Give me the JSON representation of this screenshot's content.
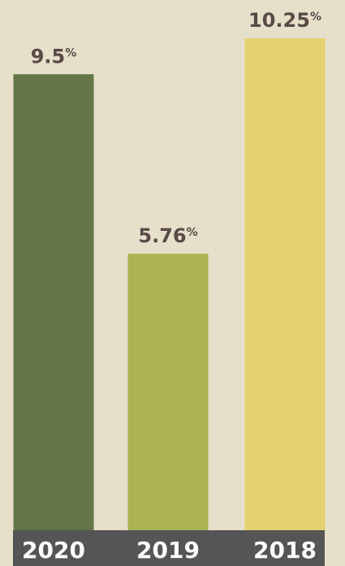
{
  "chart_data": {
    "type": "bar",
    "categories": [
      "2020",
      "2019",
      "2018"
    ],
    "values": [
      9.5,
      5.76,
      10.25
    ],
    "value_labels": [
      "9.5%",
      "5.76%",
      "10.25%"
    ],
    "colors": [
      "#627646",
      "#abb450",
      "#e3d06e"
    ]
  }
}
